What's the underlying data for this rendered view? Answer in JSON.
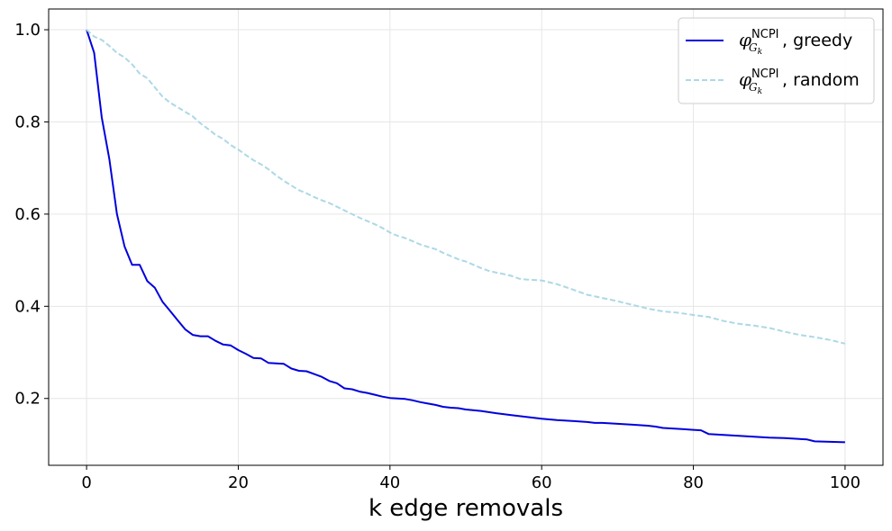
{
  "chart_data": {
    "type": "line",
    "xlabel": "k edge removals",
    "ylabel": "",
    "xlim": [
      -5,
      105
    ],
    "ylim": [
      0.055,
      1.045
    ],
    "x_ticks": [
      0,
      20,
      40,
      60,
      80,
      100
    ],
    "y_ticks": [
      0.2,
      0.4,
      0.6,
      0.8,
      1.0
    ],
    "x_tick_labels": [
      "0",
      "20",
      "40",
      "60",
      "80",
      "100"
    ],
    "y_tick_labels": [
      "0.2",
      "0.4",
      "0.6",
      "0.8",
      "1.0"
    ],
    "grid": true,
    "legend_position": "top-right",
    "series": [
      {
        "name_symbol": "φ",
        "name_sup": "NCPI",
        "name_sub": "G",
        "name_subsub": "k",
        "name_suffix": ", greedy",
        "color": "#0000dd",
        "style": "solid",
        "points": [
          [
            0,
            1.0
          ],
          [
            1,
            0.95
          ],
          [
            2,
            0.81
          ],
          [
            3,
            0.72
          ],
          [
            4,
            0.6
          ],
          [
            5,
            0.53
          ],
          [
            6,
            0.49
          ],
          [
            7,
            0.49
          ],
          [
            8,
            0.455
          ],
          [
            9,
            0.44
          ],
          [
            10,
            0.41
          ],
          [
            11,
            0.39
          ],
          [
            12,
            0.37
          ],
          [
            13,
            0.35
          ],
          [
            14,
            0.338
          ],
          [
            15,
            0.335
          ],
          [
            16,
            0.335
          ],
          [
            17,
            0.325
          ],
          [
            18,
            0.317
          ],
          [
            19,
            0.315
          ],
          [
            20,
            0.305
          ],
          [
            21,
            0.297
          ],
          [
            22,
            0.288
          ],
          [
            23,
            0.287
          ],
          [
            24,
            0.277
          ],
          [
            25,
            0.276
          ],
          [
            26,
            0.275
          ],
          [
            27,
            0.265
          ],
          [
            28,
            0.26
          ],
          [
            29,
            0.259
          ],
          [
            30,
            0.253
          ],
          [
            31,
            0.247
          ],
          [
            32,
            0.238
          ],
          [
            33,
            0.233
          ],
          [
            34,
            0.222
          ],
          [
            35,
            0.22
          ],
          [
            36,
            0.215
          ],
          [
            37,
            0.212
          ],
          [
            38,
            0.208
          ],
          [
            39,
            0.204
          ],
          [
            40,
            0.201
          ],
          [
            42,
            0.199
          ],
          [
            43,
            0.196
          ],
          [
            44,
            0.192
          ],
          [
            45,
            0.189
          ],
          [
            46,
            0.186
          ],
          [
            47,
            0.182
          ],
          [
            48,
            0.18
          ],
          [
            49,
            0.179
          ],
          [
            50,
            0.176
          ],
          [
            52,
            0.173
          ],
          [
            54,
            0.168
          ],
          [
            56,
            0.164
          ],
          [
            58,
            0.16
          ],
          [
            60,
            0.156
          ],
          [
            62,
            0.153
          ],
          [
            64,
            0.151
          ],
          [
            66,
            0.149
          ],
          [
            67,
            0.147
          ],
          [
            68,
            0.147
          ],
          [
            70,
            0.145
          ],
          [
            72,
            0.143
          ],
          [
            74,
            0.141
          ],
          [
            75,
            0.139
          ],
          [
            76,
            0.136
          ],
          [
            78,
            0.134
          ],
          [
            80,
            0.132
          ],
          [
            81,
            0.131
          ],
          [
            82,
            0.123
          ],
          [
            83,
            0.122
          ],
          [
            84,
            0.121
          ],
          [
            86,
            0.119
          ],
          [
            88,
            0.117
          ],
          [
            90,
            0.115
          ],
          [
            92,
            0.114
          ],
          [
            94,
            0.112
          ],
          [
            95,
            0.111
          ],
          [
            96,
            0.107
          ],
          [
            98,
            0.106
          ],
          [
            100,
            0.105
          ]
        ]
      },
      {
        "name_symbol": "φ",
        "name_sup": "NCPI",
        "name_sub": "G",
        "name_subsub": "k",
        "name_suffix": ", random",
        "color": "#add8e6",
        "style": "dashed",
        "points": [
          [
            0,
            1.0
          ],
          [
            1,
            0.985
          ],
          [
            2,
            0.978
          ],
          [
            3,
            0.965
          ],
          [
            4,
            0.95
          ],
          [
            5,
            0.94
          ],
          [
            6,
            0.925
          ],
          [
            7,
            0.905
          ],
          [
            8,
            0.895
          ],
          [
            9,
            0.875
          ],
          [
            10,
            0.855
          ],
          [
            11,
            0.842
          ],
          [
            12,
            0.832
          ],
          [
            13,
            0.822
          ],
          [
            14,
            0.812
          ],
          [
            15,
            0.797
          ],
          [
            16,
            0.785
          ],
          [
            17,
            0.772
          ],
          [
            18,
            0.763
          ],
          [
            19,
            0.75
          ],
          [
            20,
            0.74
          ],
          [
            21,
            0.728
          ],
          [
            22,
            0.717
          ],
          [
            23,
            0.708
          ],
          [
            24,
            0.697
          ],
          [
            25,
            0.684
          ],
          [
            26,
            0.672
          ],
          [
            27,
            0.662
          ],
          [
            28,
            0.652
          ],
          [
            29,
            0.645
          ],
          [
            30,
            0.637
          ],
          [
            31,
            0.63
          ],
          [
            32,
            0.624
          ],
          [
            33,
            0.616
          ],
          [
            34,
            0.608
          ],
          [
            35,
            0.6
          ],
          [
            36,
            0.592
          ],
          [
            37,
            0.585
          ],
          [
            38,
            0.578
          ],
          [
            39,
            0.57
          ],
          [
            40,
            0.56
          ],
          [
            41,
            0.553
          ],
          [
            42,
            0.548
          ],
          [
            43,
            0.541
          ],
          [
            44,
            0.534
          ],
          [
            45,
            0.529
          ],
          [
            46,
            0.524
          ],
          [
            47,
            0.516
          ],
          [
            48,
            0.509
          ],
          [
            49,
            0.502
          ],
          [
            50,
            0.497
          ],
          [
            51,
            0.49
          ],
          [
            52,
            0.483
          ],
          [
            53,
            0.477
          ],
          [
            54,
            0.473
          ],
          [
            55,
            0.47
          ],
          [
            56,
            0.466
          ],
          [
            57,
            0.46
          ],
          [
            58,
            0.458
          ],
          [
            60,
            0.456
          ],
          [
            62,
            0.448
          ],
          [
            64,
            0.437
          ],
          [
            66,
            0.425
          ],
          [
            68,
            0.418
          ],
          [
            70,
            0.411
          ],
          [
            72,
            0.403
          ],
          [
            74,
            0.395
          ],
          [
            76,
            0.389
          ],
          [
            78,
            0.386
          ],
          [
            80,
            0.381
          ],
          [
            82,
            0.377
          ],
          [
            84,
            0.368
          ],
          [
            86,
            0.362
          ],
          [
            88,
            0.358
          ],
          [
            90,
            0.353
          ],
          [
            92,
            0.345
          ],
          [
            94,
            0.338
          ],
          [
            96,
            0.333
          ],
          [
            98,
            0.327
          ],
          [
            100,
            0.319
          ]
        ]
      }
    ]
  }
}
